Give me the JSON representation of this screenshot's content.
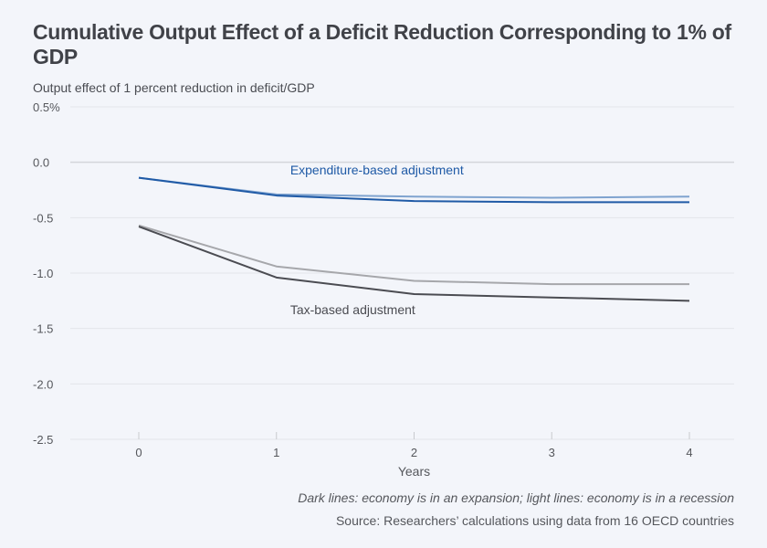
{
  "chart_data": {
    "type": "line",
    "title": "Cumulative Output Effect of a Deficit Reduction Corresponding to 1% of GDP",
    "ylabel": "Output effect of 1 percent reduction in deficit/GDP",
    "xlabel": "Years",
    "x": [
      0,
      1,
      2,
      3,
      4
    ],
    "xlim": [
      -0.5,
      4.3
    ],
    "ylim": [
      -2.5,
      0.5
    ],
    "yticks": [
      0.5,
      0.0,
      -0.5,
      -1.0,
      -1.5,
      -2.0,
      -2.5
    ],
    "ytick_labels": [
      "0.5%",
      "0.0",
      "-0.5",
      "-1.0",
      "-1.5",
      "-2.0",
      "-2.5"
    ],
    "xtick_labels": [
      "0",
      "1",
      "2",
      "3",
      "4"
    ],
    "grid": true,
    "series": [
      {
        "name": "Expenditure-based adjustment (recession)",
        "shade": "light",
        "color": "#7fa3cf",
        "values": [
          -0.14,
          -0.29,
          -0.31,
          -0.32,
          -0.31
        ]
      },
      {
        "name": "Expenditure-based adjustment (expansion)",
        "shade": "dark",
        "color": "#1f5aa6",
        "values": [
          -0.14,
          -0.3,
          -0.35,
          -0.36,
          -0.36
        ]
      },
      {
        "name": "Tax-based adjustment (recession)",
        "shade": "light",
        "color": "#a6a7ab",
        "values": [
          -0.57,
          -0.94,
          -1.07,
          -1.1,
          -1.1
        ]
      },
      {
        "name": "Tax-based adjustment (expansion)",
        "shade": "dark",
        "color": "#4b4c52",
        "values": [
          -0.58,
          -1.04,
          -1.19,
          -1.22,
          -1.25
        ]
      }
    ],
    "annotations": [
      {
        "text": "Expenditure-based adjustment",
        "x": 1.1,
        "y": -0.07,
        "color": "#1f5aa6"
      },
      {
        "text": "Tax-based adjustment",
        "x": 1.1,
        "y": -1.33,
        "color": "#4b4c52"
      }
    ]
  },
  "notes": {
    "legend_note": "Dark lines: economy is in an expansion; light lines: economy is in a recession",
    "source": "Source: Researchers’ calculations using data from 16 OECD countries"
  }
}
